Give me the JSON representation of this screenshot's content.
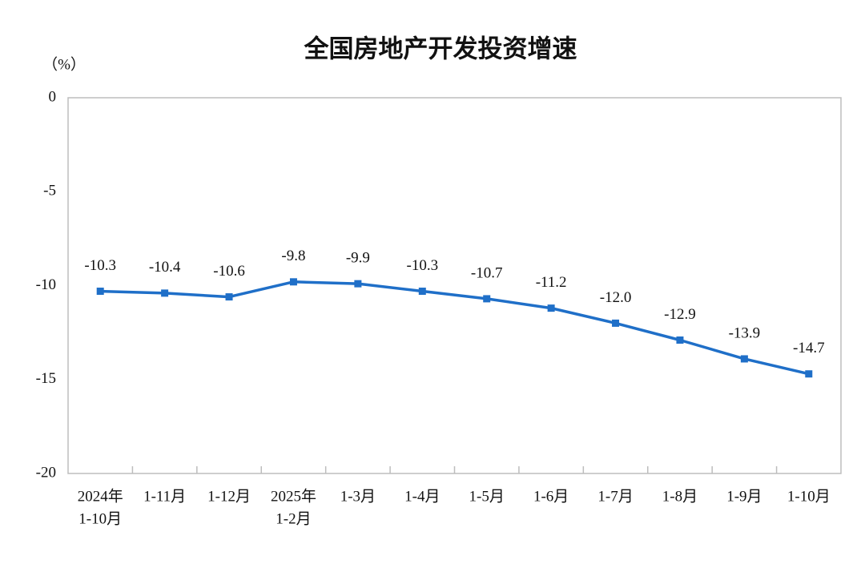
{
  "chart_data": {
    "type": "line",
    "title": "全国房地产开发投资增速",
    "y_unit": "（%）",
    "categories": [
      [
        "2024年",
        "1-10月"
      ],
      [
        "1-11月"
      ],
      [
        "1-12月"
      ],
      [
        "2025年",
        "1-2月"
      ],
      [
        "1-3月"
      ],
      [
        "1-4月"
      ],
      [
        "1-5月"
      ],
      [
        "1-6月"
      ],
      [
        "1-7月"
      ],
      [
        "1-8月"
      ],
      [
        "1-9月"
      ],
      [
        "1-10月"
      ]
    ],
    "series": [
      {
        "color": "#1f6fc8",
        "values": [
          -10.3,
          -10.4,
          -10.6,
          -9.8,
          -9.9,
          -10.3,
          -10.7,
          -11.2,
          -12.0,
          -12.9,
          -13.9,
          -14.7
        ],
        "value_labels": [
          "-10.3",
          "-10.4",
          "-10.6",
          "-9.8",
          "-9.9",
          "-10.3",
          "-10.7",
          "-11.2",
          "-12.0",
          "-12.9",
          "-13.9",
          "-14.7"
        ]
      }
    ],
    "ylim": [
      -20,
      0
    ],
    "yticks": [
      0,
      -5,
      -10,
      -15,
      -20
    ],
    "grid": false
  }
}
